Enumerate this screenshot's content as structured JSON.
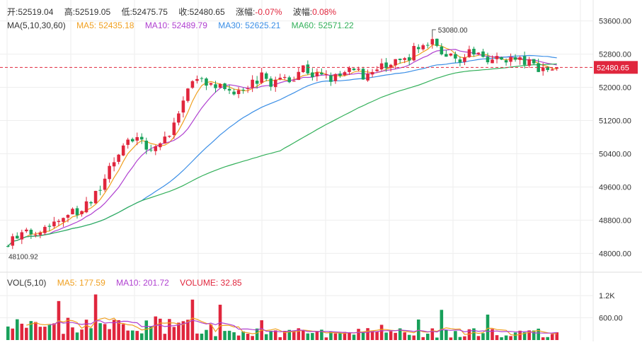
{
  "ohlc": {
    "open_label": "开:",
    "open": "52519.04",
    "high_label": "高:",
    "high": "52519.05",
    "low_label": "低:",
    "low": "52475.75",
    "close_label": "收:",
    "close": "52480.65",
    "change_label": "涨幅:",
    "change": "-0.07%",
    "amplitude_label": "波幅:",
    "amplitude": "0.08%"
  },
  "ma_legend": {
    "title": "MA(5,10,30,60)",
    "items": [
      {
        "label": "MA5: ",
        "value": "52435.18",
        "color": "#f0a020"
      },
      {
        "label": "MA10: ",
        "value": "52489.79",
        "color": "#b040d0"
      },
      {
        "label": "MA30: ",
        "value": "52625.21",
        "color": "#3a8ee6"
      },
      {
        "label": "MA60: ",
        "value": "52571.22",
        "color": "#33b05a"
      }
    ]
  },
  "vol_legend": {
    "title": "VOL(5,10)",
    "items": [
      {
        "label": "MA5: ",
        "value": "177.59",
        "color": "#f0a020"
      },
      {
        "label": "MA10: ",
        "value": "201.72",
        "color": "#b040d0"
      },
      {
        "label": "VOLUME: ",
        "value": "32.85",
        "color": "#e0263d"
      }
    ]
  },
  "colors": {
    "up": "#e0263d",
    "down": "#18a05a",
    "grid": "#eeeeee",
    "axis_text": "#333333"
  },
  "chart_data": {
    "type": "candlestick",
    "price_axis": {
      "min": 47700,
      "max": 53900,
      "ticks": [
        48000,
        48800,
        49600,
        50400,
        51200,
        52000,
        52800,
        53600
      ],
      "tick_labels": [
        "48000.00",
        "48800.00",
        "49600.00",
        "50400.00",
        "51200.00",
        "52000.00",
        "52800.00",
        "53600.00"
      ]
    },
    "volume_axis": {
      "min": 0,
      "max": 1450,
      "ticks": [
        600,
        1200
      ],
      "tick_labels": [
        "600.00",
        "1.2K"
      ]
    },
    "last_price": 52480.65,
    "last_price_label": "52480.65",
    "high_annotation": {
      "value": 53080,
      "label": "53080.00"
    },
    "low_annotation": {
      "value": 48100.92,
      "label": "48100.92"
    },
    "price_path": [
      48300,
      48400,
      48480,
      48600,
      48700,
      48820,
      48950,
      49000,
      49200,
      49600,
      50100,
      50500,
      50800,
      50700,
      50550,
      50650,
      51000,
      51500,
      52000,
      52200,
      52050,
      51950,
      51900,
      52050,
      52100,
      52250,
      52100,
      52200,
      52250,
      52500,
      52300,
      52250,
      52200,
      52300,
      52400,
      52300,
      52400,
      52500,
      52550,
      52650,
      52900,
      53000,
      53080,
      52800,
      52700,
      52750,
      52850,
      52750,
      52650,
      52700,
      52650,
      52600,
      52500,
      52450,
      52480
    ],
    "ma_lines": [
      {
        "name": "MA5",
        "period": 5,
        "color": "#f0a020"
      },
      {
        "name": "MA10",
        "period": 10,
        "color": "#b040d0"
      },
      {
        "name": "MA30",
        "period": 30,
        "color": "#3a8ee6"
      },
      {
        "name": "MA60",
        "period": 60,
        "color": "#33b05a"
      }
    ],
    "volume_ma": [
      {
        "name": "MA5",
        "period": 5,
        "color": "#f0a020"
      },
      {
        "name": "MA10",
        "period": 10,
        "color": "#b040d0"
      }
    ]
  }
}
